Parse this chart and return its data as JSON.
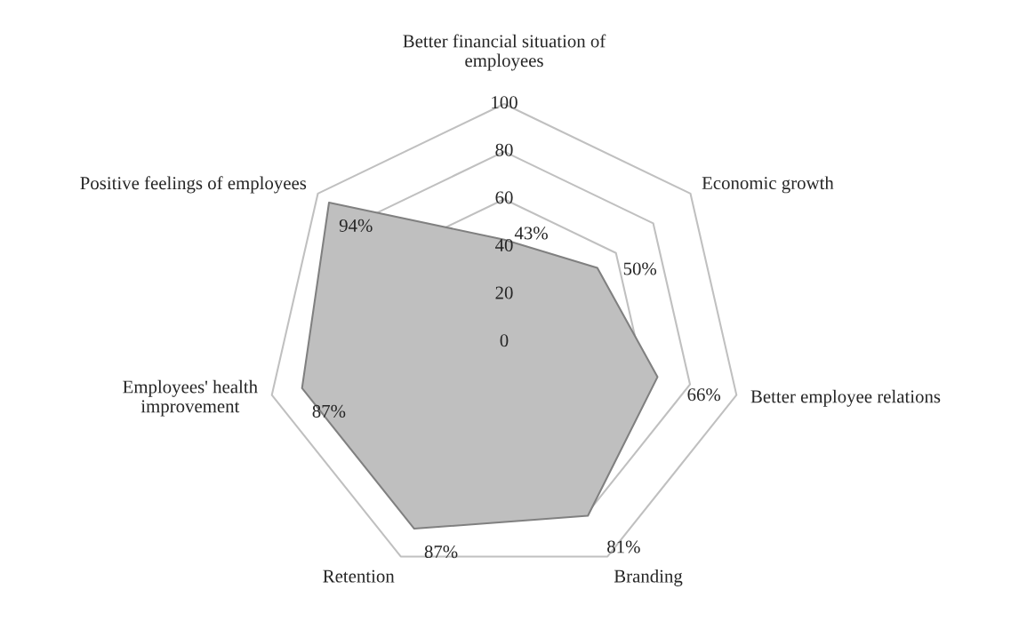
{
  "chart_data": {
    "type": "radar",
    "categories": [
      "Better financial situation of\nemployees",
      "Economic growth",
      "Better employee relations",
      "Branding",
      "Retention",
      "Employees' health\nimprovement",
      "Positive feelings of employees"
    ],
    "series": [
      {
        "color": "#bfbfbf",
        "values": [
          43,
          50,
          66,
          81,
          87,
          87,
          94
        ],
        "value_labels": [
          "43%",
          "50%",
          "66%",
          "81%",
          "87%",
          "87%",
          "94%"
        ]
      }
    ],
    "ylim": [
      0,
      100
    ],
    "yticks": [
      0,
      20,
      40,
      60,
      80,
      100
    ],
    "grid": true
  }
}
